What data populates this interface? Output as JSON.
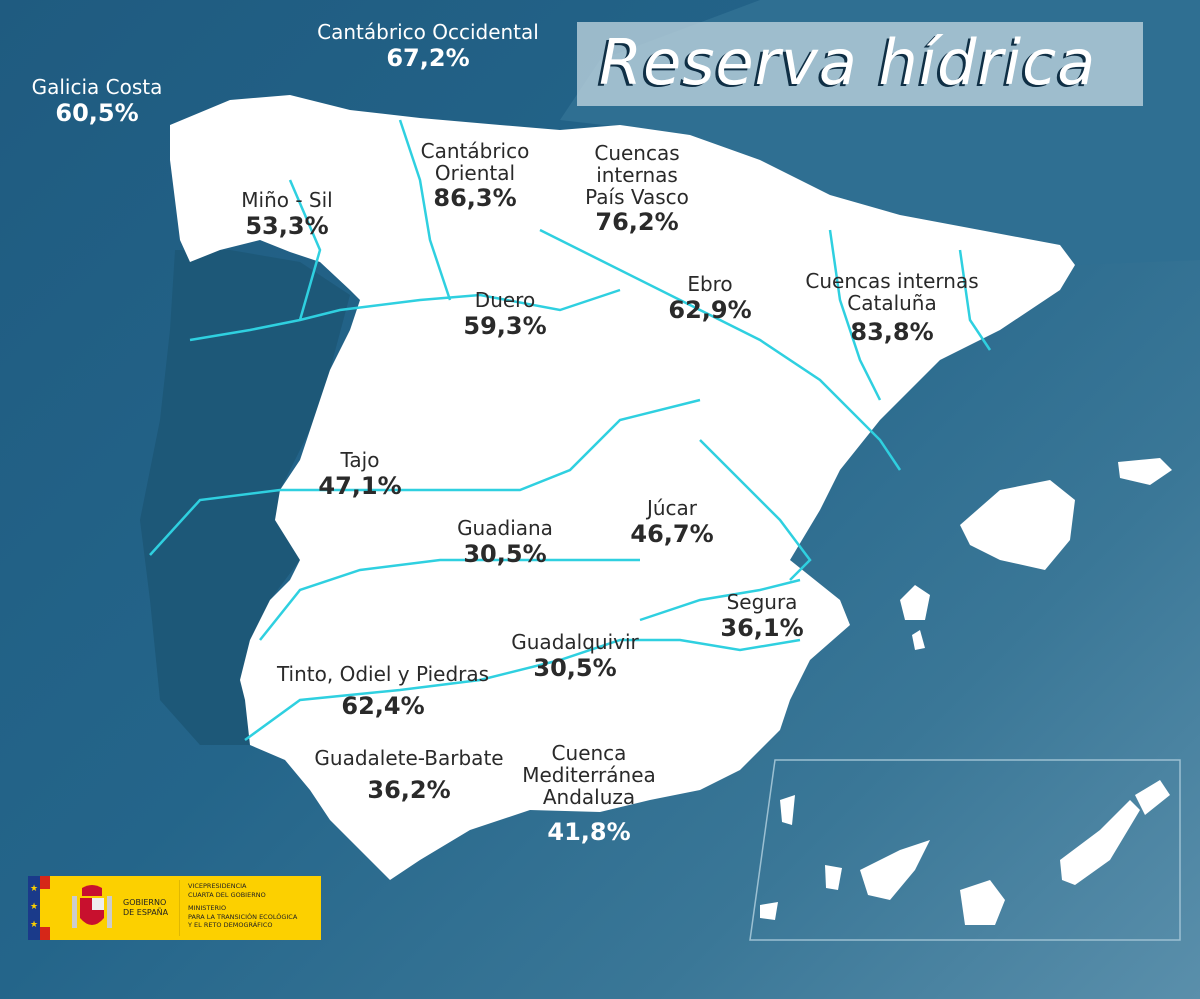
{
  "title": "Reserva hídrica",
  "colors": {
    "sea": "#24658a",
    "land": "#ffffff",
    "rivers": "#2fd0e0",
    "title_box": "#bed4de"
  },
  "basins": [
    {
      "name": "Cantábrico Occidental",
      "value": "67,2%"
    },
    {
      "name": "Galicia Costa",
      "value": "60,5%"
    },
    {
      "name": "Miño - Sil",
      "value": "53,3%"
    },
    {
      "name": "Cantábrico\nOriental",
      "value": "86,3%"
    },
    {
      "name": "Cuencas\ninternas\nPaís Vasco",
      "value": "76,2%"
    },
    {
      "name": "Ebro",
      "value": "62,9%"
    },
    {
      "name": "Cuencas internas\nCataluña",
      "value": "83,8%"
    },
    {
      "name": "Duero",
      "value": "59,3%"
    },
    {
      "name": "Tajo",
      "value": "47,1%"
    },
    {
      "name": "Guadiana",
      "value": "30,5%"
    },
    {
      "name": "Júcar",
      "value": "46,7%"
    },
    {
      "name": "Segura",
      "value": "36,1%"
    },
    {
      "name": "Guadalquivir",
      "value": "30,5%"
    },
    {
      "name": "Tinto, Odiel y Piedras",
      "value": "62,4%"
    },
    {
      "name": "Guadalete-Barbate",
      "value": "36,2%"
    },
    {
      "name": "Cuenca\nMediterránea\nAndaluza",
      "value": "41,8%"
    }
  ],
  "logo": {
    "gobierno": "GOBIERNO\nDE ESPAÑA",
    "vicepresidencia": "VICEPRESIDENCIA\nCUARTA DEL GOBIERNO",
    "ministerio": "MINISTERIO\nPARA LA TRANSICIÓN ECOLÓGICA\nY EL RETO DEMOGRÁFICO"
  }
}
